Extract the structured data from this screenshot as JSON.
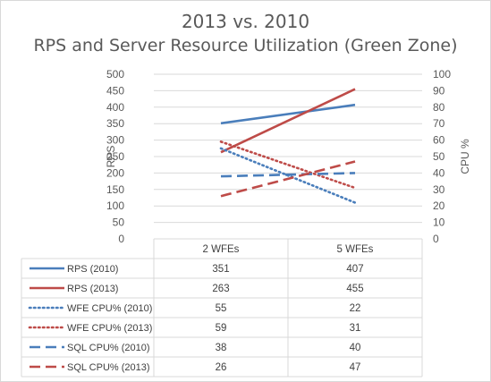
{
  "chart_data": {
    "type": "line",
    "title": "2013 vs. 2010",
    "subtitle": "RPS and Server Resource Utilization (Green Zone)",
    "categories": [
      "2 WFEs",
      "5 WFEs"
    ],
    "ylabel": "RPS",
    "y2label": "CPU %",
    "ylim": [
      0,
      500
    ],
    "y2lim": [
      0,
      100
    ],
    "yticks": [
      "0",
      "50",
      "100",
      "150",
      "200",
      "250",
      "300",
      "350",
      "400",
      "450",
      "500"
    ],
    "y2ticks": [
      "0",
      "10",
      "20",
      "30",
      "40",
      "50",
      "60",
      "70",
      "80",
      "90",
      "100"
    ],
    "grid": true,
    "legend": "data-table",
    "series": [
      {
        "name": "RPS (2010)",
        "axis": "left",
        "values": [
          351,
          407
        ],
        "color": "#4a7ebb",
        "style": "solid"
      },
      {
        "name": "RPS (2013)",
        "axis": "left",
        "values": [
          263,
          455
        ],
        "color": "#be4b48",
        "style": "solid"
      },
      {
        "name": "WFE CPU% (2010)",
        "axis": "right",
        "values": [
          55,
          22
        ],
        "color": "#4a7ebb",
        "style": "dotted"
      },
      {
        "name": "WFE CPU% (2013)",
        "axis": "right",
        "values": [
          59,
          31
        ],
        "color": "#be4b48",
        "style": "dotted"
      },
      {
        "name": "SQL CPU% (2010)",
        "axis": "right",
        "values": [
          38,
          40
        ],
        "color": "#4a7ebb",
        "style": "dashed"
      },
      {
        "name": "SQL CPU% (2013)",
        "axis": "right",
        "values": [
          26,
          47
        ],
        "color": "#be4b48",
        "style": "dashed"
      }
    ]
  }
}
